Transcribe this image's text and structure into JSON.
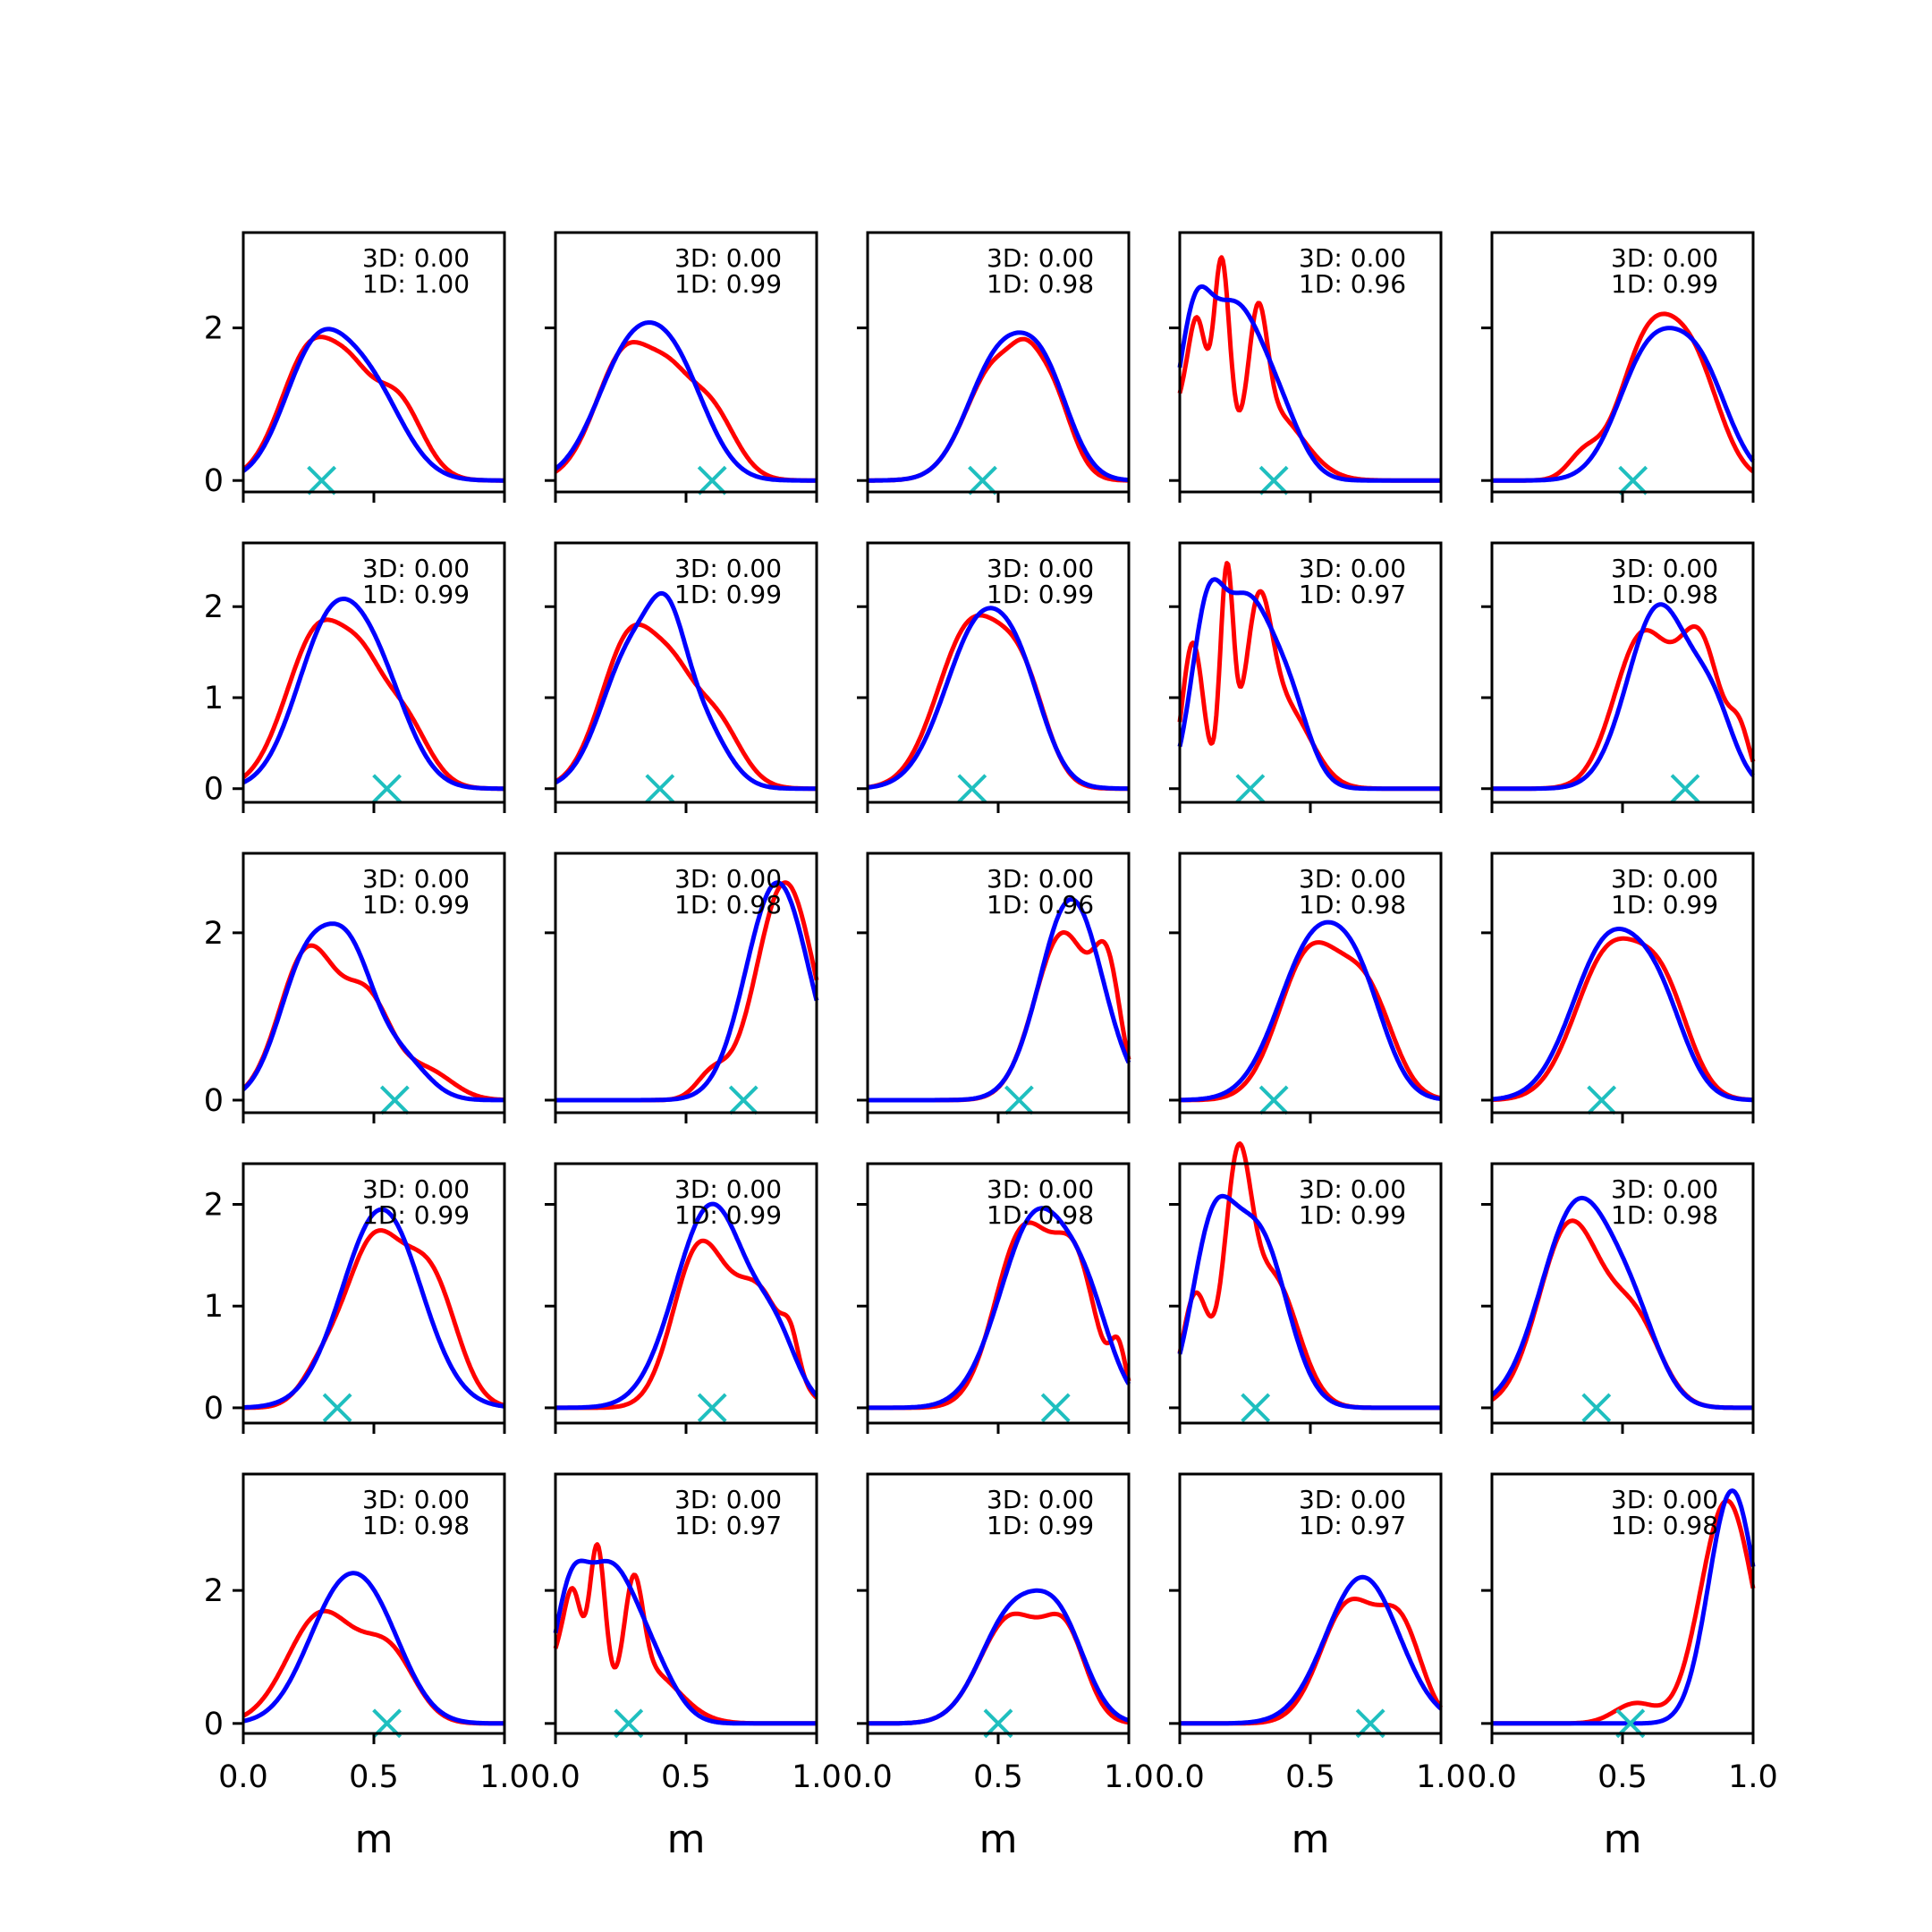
{
  "figure": {
    "rows": 5,
    "cols": 5,
    "xlabel": "m",
    "x_ticks": [
      "0.0",
      "0.5",
      "1.0"
    ],
    "colors": {
      "red": "#ff0000",
      "blue": "#0000ff",
      "marker": "#1fbfbf",
      "axes": "#000000"
    }
  },
  "chart_data": [
    {
      "row": 0,
      "col": 0,
      "type": "line",
      "xlim": [
        0,
        1
      ],
      "ylim": [
        -0.15,
        3.25
      ],
      "yticks": [
        0,
        2
      ],
      "ann": [
        "3D: 0.00",
        "1D: 1.00"
      ],
      "marker_x": 0.3,
      "red_peaks": [
        [
          0.27,
          0.12,
          1.8
        ],
        [
          0.42,
          0.07,
          0.5
        ],
        [
          0.58,
          0.1,
          1.1
        ]
      ],
      "blue_peaks": [
        [
          0.27,
          0.12,
          1.55
        ],
        [
          0.48,
          0.13,
          1.2
        ]
      ]
    },
    {
      "row": 0,
      "col": 1,
      "type": "line",
      "xlim": [
        0,
        1
      ],
      "ylim": [
        -0.15,
        3.25
      ],
      "yticks": [
        0,
        2
      ],
      "ann": [
        "3D: 0.00",
        "1D: 0.99"
      ],
      "marker_x": 0.6,
      "red_peaks": [
        [
          0.28,
          0.12,
          1.75
        ],
        [
          0.44,
          0.07,
          0.5
        ],
        [
          0.58,
          0.1,
          1.0
        ]
      ],
      "blue_peaks": [
        [
          0.28,
          0.13,
          1.55
        ],
        [
          0.47,
          0.12,
          1.2
        ]
      ]
    },
    {
      "row": 0,
      "col": 2,
      "type": "line",
      "xlim": [
        0,
        1
      ],
      "ylim": [
        -0.15,
        3.25
      ],
      "yticks": [
        0,
        2
      ],
      "ann": [
        "3D: 0.00",
        "1D: 0.98"
      ],
      "marker_x": 0.44,
      "red_peaks": [
        [
          0.5,
          0.12,
          1.55
        ],
        [
          0.7,
          0.08,
          1.0
        ],
        [
          0.6,
          0.05,
          0.3
        ]
      ],
      "blue_peaks": [
        [
          0.5,
          0.12,
          1.55
        ],
        [
          0.68,
          0.1,
          1.15
        ]
      ]
    },
    {
      "row": 0,
      "col": 3,
      "type": "line",
      "xlim": [
        0,
        1
      ],
      "ylim": [
        -0.15,
        3.25
      ],
      "yticks": [
        0,
        2
      ],
      "ann": [
        "3D: 0.00",
        "1D: 0.96"
      ],
      "marker_x": 0.36,
      "red_peaks": [
        [
          0.0,
          0.05,
          0.9
        ],
        [
          0.07,
          0.035,
          1.7
        ],
        [
          0.16,
          0.03,
          2.6
        ],
        [
          0.3,
          0.035,
          1.5
        ],
        [
          0.35,
          0.12,
          0.9
        ]
      ],
      "blue_peaks": [
        [
          0.05,
          0.06,
          1.5
        ],
        [
          0.2,
          0.11,
          2.2
        ],
        [
          0.38,
          0.09,
          0.7
        ]
      ]
    },
    {
      "row": 0,
      "col": 4,
      "type": "line",
      "xlim": [
        0,
        1
      ],
      "ylim": [
        -0.15,
        3.25
      ],
      "yticks": [
        0,
        2
      ],
      "ann": [
        "3D: 0.00",
        "1D: 0.99"
      ],
      "marker_x": 0.54,
      "red_peaks": [
        [
          0.6,
          0.11,
          1.8
        ],
        [
          0.78,
          0.1,
          1.3
        ],
        [
          0.35,
          0.06,
          0.3
        ]
      ],
      "blue_peaks": [
        [
          0.6,
          0.12,
          1.6
        ],
        [
          0.8,
          0.11,
          1.3
        ]
      ]
    },
    {
      "row": 1,
      "col": 0,
      "type": "line",
      "xlim": [
        0,
        1
      ],
      "ylim": [
        -0.15,
        2.7
      ],
      "yticks": [
        0,
        1,
        2
      ],
      "ann": [
        "3D: 0.00",
        "1D: 0.99"
      ],
      "marker_x": 0.55,
      "red_peaks": [
        [
          0.3,
          0.13,
          1.8
        ],
        [
          0.46,
          0.07,
          0.45
        ],
        [
          0.6,
          0.1,
          0.8
        ]
      ],
      "blue_peaks": [
        [
          0.33,
          0.13,
          1.7
        ],
        [
          0.52,
          0.12,
          1.0
        ]
      ]
    },
    {
      "row": 1,
      "col": 1,
      "type": "line",
      "xlim": [
        0,
        1
      ],
      "ylim": [
        -0.15,
        2.7
      ],
      "yticks": [
        0,
        1,
        2
      ],
      "ann": [
        "3D: 0.00",
        "1D: 0.99"
      ],
      "marker_x": 0.4,
      "red_peaks": [
        [
          0.3,
          0.12,
          1.75
        ],
        [
          0.46,
          0.07,
          0.45
        ],
        [
          0.6,
          0.1,
          0.8
        ]
      ],
      "blue_peaks": [
        [
          0.3,
          0.12,
          1.55
        ],
        [
          0.43,
          0.07,
          0.9
        ],
        [
          0.55,
          0.1,
          0.7
        ]
      ]
    },
    {
      "row": 1,
      "col": 2,
      "type": "line",
      "xlim": [
        0,
        1
      ],
      "ylim": [
        -0.15,
        2.7
      ],
      "yticks": [
        0,
        1,
        2
      ],
      "ann": [
        "3D: 0.00",
        "1D: 0.99"
      ],
      "marker_x": 0.4,
      "red_peaks": [
        [
          0.4,
          0.13,
          1.8
        ],
        [
          0.6,
          0.09,
          0.9
        ]
      ],
      "blue_peaks": [
        [
          0.44,
          0.14,
          1.85
        ],
        [
          0.6,
          0.09,
          0.5
        ]
      ]
    },
    {
      "row": 1,
      "col": 3,
      "type": "line",
      "xlim": [
        0,
        1
      ],
      "ylim": [
        -0.15,
        2.7
      ],
      "yticks": [
        0,
        1,
        2
      ],
      "ann": [
        "3D: 0.00",
        "1D: 0.97"
      ],
      "marker_x": 0.27,
      "red_peaks": [
        [
          0.05,
          0.04,
          1.6
        ],
        [
          0.18,
          0.025,
          2.3
        ],
        [
          0.3,
          0.05,
          1.6
        ],
        [
          0.4,
          0.1,
          0.9
        ]
      ],
      "blue_peaks": [
        [
          0.1,
          0.06,
          1.5
        ],
        [
          0.25,
          0.1,
          2.0
        ],
        [
          0.42,
          0.08,
          0.8
        ]
      ]
    },
    {
      "row": 1,
      "col": 4,
      "type": "line",
      "xlim": [
        0,
        1
      ],
      "ylim": [
        -0.15,
        2.7
      ],
      "yticks": [
        0,
        1,
        2
      ],
      "ann": [
        "3D: 0.00",
        "1D: 0.98"
      ],
      "marker_x": 0.74,
      "red_peaks": [
        [
          0.58,
          0.11,
          1.7
        ],
        [
          0.8,
          0.08,
          1.5
        ],
        [
          0.95,
          0.04,
          0.5
        ]
      ],
      "blue_peaks": [
        [
          0.64,
          0.12,
          2.0
        ],
        [
          0.85,
          0.08,
          0.7
        ]
      ]
    },
    {
      "row": 2,
      "col": 0,
      "type": "line",
      "xlim": [
        0,
        1
      ],
      "ylim": [
        -0.15,
        2.95
      ],
      "yticks": [
        0,
        2
      ],
      "ann": [
        "3D: 0.00",
        "1D: 0.99"
      ],
      "marker_x": 0.58,
      "red_peaks": [
        [
          0.25,
          0.11,
          1.8
        ],
        [
          0.48,
          0.09,
          1.1
        ],
        [
          0.7,
          0.1,
          0.35
        ]
      ],
      "blue_peaks": [
        [
          0.25,
          0.11,
          1.7
        ],
        [
          0.42,
          0.09,
          1.3
        ],
        [
          0.6,
          0.1,
          0.5
        ]
      ]
    },
    {
      "row": 2,
      "col": 1,
      "type": "line",
      "xlim": [
        0,
        1
      ],
      "ylim": [
        -0.15,
        2.95
      ],
      "yticks": [
        0,
        2
      ],
      "ann": [
        "3D: 0.00",
        "1D: 0.98"
      ],
      "marker_x": 0.72,
      "red_peaks": [
        [
          0.88,
          0.11,
          2.6
        ],
        [
          0.6,
          0.06,
          0.3
        ]
      ],
      "blue_peaks": [
        [
          0.85,
          0.12,
          2.6
        ]
      ]
    },
    {
      "row": 2,
      "col": 2,
      "type": "line",
      "xlim": [
        0,
        1
      ],
      "ylim": [
        -0.15,
        2.95
      ],
      "yticks": [
        0,
        2
      ],
      "ann": [
        "3D: 0.00",
        "1D: 0.96"
      ],
      "marker_x": 0.58,
      "red_peaks": [
        [
          0.75,
          0.11,
          2.0
        ],
        [
          0.92,
          0.05,
          1.2
        ]
      ],
      "blue_peaks": [
        [
          0.78,
          0.12,
          2.4
        ]
      ]
    },
    {
      "row": 2,
      "col": 3,
      "type": "line",
      "xlim": [
        0,
        1
      ],
      "ylim": [
        -0.15,
        2.95
      ],
      "yticks": [
        0,
        2
      ],
      "ann": [
        "3D: 0.00",
        "1D: 0.98"
      ],
      "marker_x": 0.36,
      "red_peaks": [
        [
          0.5,
          0.12,
          1.75
        ],
        [
          0.72,
          0.1,
          1.15
        ]
      ],
      "blue_peaks": [
        [
          0.52,
          0.14,
          1.9
        ],
        [
          0.7,
          0.1,
          0.8
        ]
      ]
    },
    {
      "row": 2,
      "col": 4,
      "type": "line",
      "xlim": [
        0,
        1
      ],
      "ylim": [
        -0.15,
        2.95
      ],
      "yticks": [
        0,
        2
      ],
      "ann": [
        "3D: 0.00",
        "1D: 0.99"
      ],
      "marker_x": 0.42,
      "red_peaks": [
        [
          0.45,
          0.13,
          1.75
        ],
        [
          0.66,
          0.1,
          1.1
        ]
      ],
      "blue_peaks": [
        [
          0.45,
          0.14,
          1.9
        ],
        [
          0.65,
          0.1,
          0.8
        ]
      ]
    },
    {
      "row": 3,
      "col": 0,
      "type": "line",
      "xlim": [
        0,
        1
      ],
      "ylim": [
        -0.15,
        2.4
      ],
      "yticks": [
        0,
        1,
        2
      ],
      "ann": [
        "3D: 0.00",
        "1D: 0.99"
      ],
      "marker_x": 0.36,
      "red_peaks": [
        [
          0.5,
          0.11,
          1.6
        ],
        [
          0.72,
          0.1,
          1.2
        ],
        [
          0.3,
          0.08,
          0.3
        ]
      ],
      "blue_peaks": [
        [
          0.53,
          0.15,
          1.95
        ]
      ]
    },
    {
      "row": 3,
      "col": 1,
      "type": "line",
      "xlim": [
        0,
        1
      ],
      "ylim": [
        -0.15,
        2.4
      ],
      "yticks": [
        0,
        1,
        2
      ],
      "ann": [
        "3D: 0.00",
        "1D: 0.99"
      ],
      "marker_x": 0.6,
      "red_peaks": [
        [
          0.55,
          0.1,
          1.55
        ],
        [
          0.78,
          0.1,
          1.1
        ],
        [
          0.9,
          0.03,
          0.3
        ]
      ],
      "blue_peaks": [
        [
          0.6,
          0.14,
          2.0
        ],
        [
          0.85,
          0.08,
          0.5
        ]
      ]
    },
    {
      "row": 3,
      "col": 2,
      "type": "line",
      "xlim": [
        0,
        1
      ],
      "ylim": [
        -0.15,
        2.4
      ],
      "yticks": [
        0,
        1,
        2
      ],
      "ann": [
        "3D: 0.00",
        "1D: 0.98"
      ],
      "marker_x": 0.72,
      "red_peaks": [
        [
          0.6,
          0.11,
          1.75
        ],
        [
          0.8,
          0.08,
          1.25
        ],
        [
          0.96,
          0.03,
          0.5
        ]
      ],
      "blue_peaks": [
        [
          0.65,
          0.14,
          1.9
        ],
        [
          0.85,
          0.09,
          0.6
        ]
      ]
    },
    {
      "row": 3,
      "col": 3,
      "type": "line",
      "xlim": [
        0,
        1
      ],
      "ylim": [
        -0.15,
        2.4
      ],
      "yticks": [
        0,
        1,
        2
      ],
      "ann": [
        "3D: 0.00",
        "1D: 0.99"
      ],
      "marker_x": 0.29,
      "red_peaks": [
        [
          0.06,
          0.05,
          1.1
        ],
        [
          0.22,
          0.05,
          2.0
        ],
        [
          0.35,
          0.1,
          1.3
        ]
      ],
      "blue_peaks": [
        [
          0.12,
          0.08,
          1.5
        ],
        [
          0.3,
          0.11,
          1.7
        ]
      ]
    },
    {
      "row": 3,
      "col": 4,
      "type": "line",
      "xlim": [
        0,
        1
      ],
      "ylim": [
        -0.15,
        2.4
      ],
      "yticks": [
        0,
        1,
        2
      ],
      "ann": [
        "3D: 0.00",
        "1D: 0.98"
      ],
      "marker_x": 0.4,
      "red_peaks": [
        [
          0.3,
          0.12,
          1.8
        ],
        [
          0.55,
          0.1,
          0.8
        ]
      ],
      "blue_peaks": [
        [
          0.33,
          0.14,
          2.0
        ],
        [
          0.55,
          0.1,
          0.6
        ]
      ]
    },
    {
      "row": 4,
      "col": 0,
      "type": "line",
      "xlim": [
        0,
        1
      ],
      "ylim": [
        -0.15,
        3.75
      ],
      "yticks": [
        0,
        2
      ],
      "ann": [
        "3D: 0.00",
        "1D: 0.98"
      ],
      "marker_x": 0.55,
      "red_peaks": [
        [
          0.3,
          0.13,
          1.65
        ],
        [
          0.56,
          0.1,
          1.0
        ]
      ],
      "blue_peaks": [
        [
          0.36,
          0.13,
          1.65
        ],
        [
          0.52,
          0.12,
          1.1
        ]
      ]
    },
    {
      "row": 4,
      "col": 1,
      "type": "line",
      "xlim": [
        0,
        1
      ],
      "ylim": [
        -0.15,
        3.75
      ],
      "yticks": [
        0,
        2
      ],
      "ann": [
        "3D: 0.00",
        "1D: 0.97"
      ],
      "marker_x": 0.28,
      "red_peaks": [
        [
          0.0,
          0.05,
          0.9
        ],
        [
          0.07,
          0.035,
          1.6
        ],
        [
          0.16,
          0.03,
          2.4
        ],
        [
          0.3,
          0.035,
          1.5
        ],
        [
          0.35,
          0.12,
          0.8
        ]
      ],
      "blue_peaks": [
        [
          0.05,
          0.06,
          1.3
        ],
        [
          0.2,
          0.11,
          2.3
        ],
        [
          0.38,
          0.09,
          0.6
        ]
      ]
    },
    {
      "row": 4,
      "col": 2,
      "type": "line",
      "xlim": [
        0,
        1
      ],
      "ylim": [
        -0.15,
        3.75
      ],
      "yticks": [
        0,
        2
      ],
      "ann": [
        "3D: 0.00",
        "1D: 0.99"
      ],
      "marker_x": 0.5,
      "red_peaks": [
        [
          0.55,
          0.12,
          1.6
        ],
        [
          0.76,
          0.08,
          1.2
        ]
      ],
      "blue_peaks": [
        [
          0.55,
          0.12,
          1.6
        ],
        [
          0.74,
          0.1,
          1.3
        ]
      ]
    },
    {
      "row": 4,
      "col": 3,
      "type": "line",
      "xlim": [
        0,
        1
      ],
      "ylim": [
        -0.15,
        3.75
      ],
      "yticks": [
        0,
        2
      ],
      "ann": [
        "3D: 0.00",
        "1D: 0.97"
      ],
      "marker_x": 0.73,
      "red_peaks": [
        [
          0.65,
          0.11,
          1.8
        ],
        [
          0.85,
          0.08,
          1.3
        ]
      ],
      "blue_peaks": [
        [
          0.7,
          0.14,
          2.2
        ]
      ]
    },
    {
      "row": 4,
      "col": 4,
      "type": "line",
      "xlim": [
        0,
        1
      ],
      "ylim": [
        -0.15,
        3.75
      ],
      "yticks": [
        0,
        2
      ],
      "ann": [
        "3D: 0.00",
        "1D: 0.98"
      ],
      "marker_x": 0.53,
      "red_peaks": [
        [
          0.9,
          0.1,
          3.35
        ],
        [
          0.55,
          0.08,
          0.3
        ]
      ],
      "blue_peaks": [
        [
          0.92,
          0.09,
          3.5
        ]
      ]
    }
  ]
}
